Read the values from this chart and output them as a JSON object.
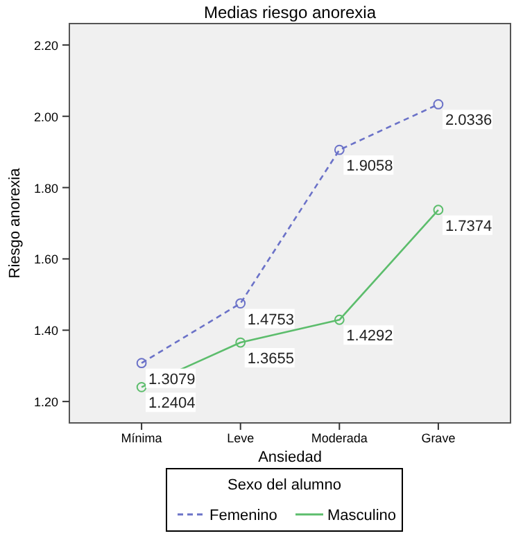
{
  "chart_data": {
    "type": "line",
    "title": "Medias riesgo anorexia",
    "xlabel": "Ansiedad",
    "ylabel": "Riesgo anorexia",
    "legend_title": "Sexo del alumno",
    "categories": [
      "Mínima",
      "Leve",
      "Moderada",
      "Grave"
    ],
    "series": [
      {
        "name": "Femenino",
        "color": "#6b72c8",
        "line_style": "dashed",
        "values": [
          1.3079,
          1.4753,
          1.9058,
          2.0336
        ]
      },
      {
        "name": "Masculino",
        "color": "#5cbd6c",
        "line_style": "solid",
        "values": [
          1.2404,
          1.3655,
          1.4292,
          1.7374
        ]
      }
    ],
    "ylim": [
      1.14,
      2.26
    ],
    "yticks": [
      {
        "value": 1.2,
        "label": "1.20"
      },
      {
        "value": 1.4,
        "label": "1.40"
      },
      {
        "value": 1.6,
        "label": "1.60"
      },
      {
        "value": 1.8,
        "label": "1.80"
      },
      {
        "value": 2.0,
        "label": "2.00"
      },
      {
        "value": 2.2,
        "label": "2.20"
      }
    ],
    "marker": "circle",
    "data_labels": true,
    "legend": "bottom",
    "grid": false
  }
}
